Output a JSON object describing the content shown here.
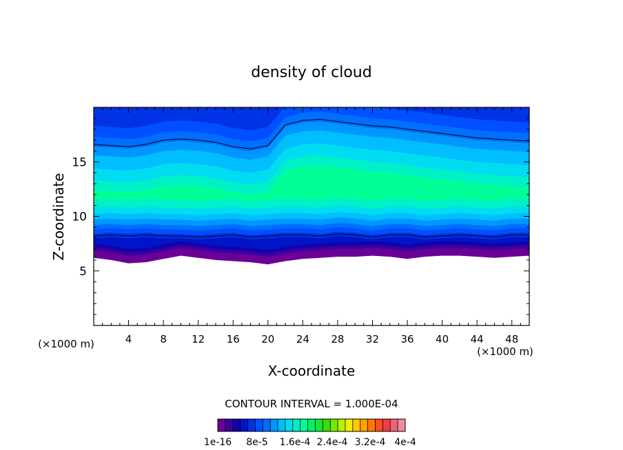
{
  "chart_data": {
    "type": "heatmap",
    "title": "density of cloud",
    "xlabel": "X-coordinate",
    "ylabel": "Z-coordinate",
    "x_units_left": "(×1000 m)",
    "x_units_right": "(×1000 m)",
    "xlim": [
      0,
      50
    ],
    "ylim": [
      0,
      20
    ],
    "x_ticks": [
      4,
      8,
      12,
      16,
      20,
      24,
      28,
      32,
      36,
      40,
      44,
      48
    ],
    "y_ticks": [
      5,
      10,
      15
    ],
    "x_tick_labels": [
      "4",
      "8",
      "12",
      "16",
      "20",
      "24",
      "28",
      "32",
      "36",
      "40",
      "44",
      "48"
    ],
    "y_tick_labels": [
      "5",
      "10",
      "15"
    ],
    "contour_interval_text": "CONTOUR INTERVAL = 1.000E-04",
    "colorbar": {
      "colors": [
        "#6a0096",
        "#3c00a0",
        "#1400aa",
        "#0014c8",
        "#0032e6",
        "#0050ff",
        "#006eff",
        "#0096ff",
        "#00beff",
        "#00dcf0",
        "#00f0c8",
        "#00ff96",
        "#00f064",
        "#14e632",
        "#3cdc14",
        "#78e600",
        "#b4f000",
        "#f0f000",
        "#ffc800",
        "#ffa000",
        "#ff7800",
        "#ff4b1e",
        "#f03c46",
        "#f06478",
        "#f08c9c"
      ],
      "labels": [
        "1e-16",
        "8e-5",
        "1.6e-4",
        "2.4e-4",
        "3.2e-4",
        "4e-4"
      ]
    },
    "cloud_base_z": [
      6.2,
      6.0,
      5.7,
      5.8,
      6.1,
      6.4,
      6.2,
      6.0,
      5.9,
      5.8,
      5.6,
      5.9,
      6.1,
      6.2,
      6.3,
      6.3,
      6.4,
      6.3,
      6.1,
      6.3,
      6.4,
      6.4,
      6.3,
      6.2,
      6.3,
      6.4
    ],
    "upper_contour_z": [
      16.6,
      16.5,
      16.4,
      16.6,
      17.0,
      17.1,
      17.0,
      16.8,
      16.4,
      16.2,
      16.5,
      18.4,
      18.8,
      18.9,
      18.7,
      18.5,
      18.3,
      18.2,
      18.0,
      17.8,
      17.6,
      17.4,
      17.2,
      17.1,
      17.0,
      16.9
    ],
    "lower_contour_z": [
      8.2,
      8.3,
      8.2,
      8.3,
      8.2,
      8.2,
      8.1,
      8.2,
      8.3,
      8.1,
      8.2,
      8.3,
      8.3,
      8.2,
      8.4,
      8.3,
      8.1,
      8.3,
      8.3,
      8.1,
      8.2,
      8.3,
      8.2,
      8.1,
      8.3,
      8.3
    ]
  }
}
